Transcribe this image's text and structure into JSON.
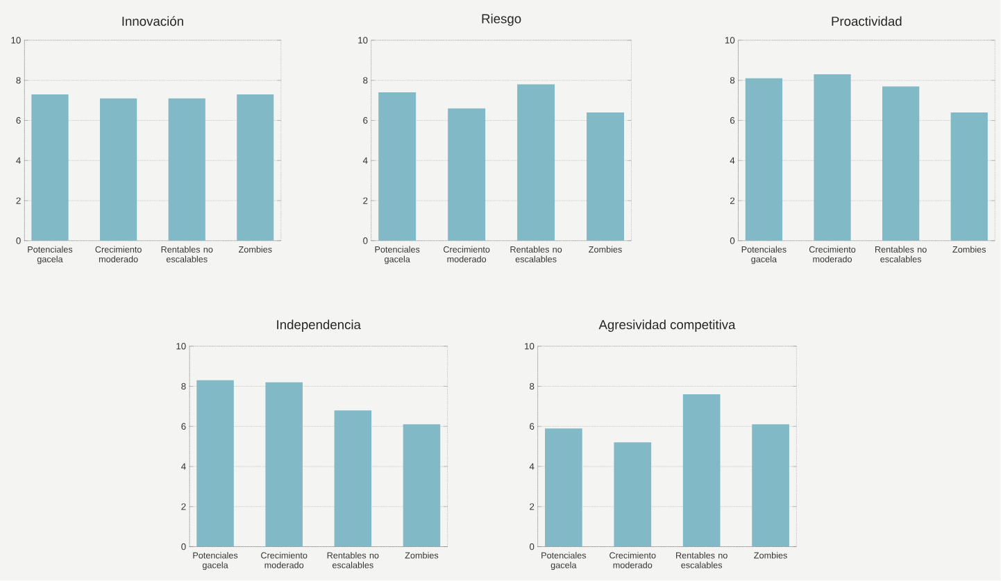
{
  "chart_data": [
    {
      "type": "bar",
      "title": "Innovación",
      "categories": [
        "Potenciales gacela",
        "Crecimiento moderado",
        "Rentables no escalables",
        "Zombies"
      ],
      "values": [
        7.3,
        7.1,
        7.1,
        7.3
      ],
      "color": "#82b9c7",
      "ylim": [
        0,
        10
      ],
      "yticks": [
        0,
        2,
        4,
        6,
        8,
        10
      ],
      "grid": "y"
    },
    {
      "type": "bar",
      "title": "Riesgo",
      "categories": [
        "Potenciales gacela",
        "Crecimiento moderado",
        "Rentables no escalables",
        "Zombies"
      ],
      "values": [
        7.4,
        6.6,
        7.8,
        6.4
      ],
      "color": "#82b9c7",
      "ylim": [
        0,
        10
      ],
      "yticks": [
        0,
        2,
        4,
        6,
        8,
        10
      ],
      "grid": "y"
    },
    {
      "type": "bar",
      "title": "Proactividad",
      "categories": [
        "Potenciales gacela",
        "Crecimiento moderado",
        "Rentables no escalables",
        "Zombies"
      ],
      "values": [
        8.1,
        8.3,
        7.7,
        6.4
      ],
      "color": "#82b9c7",
      "ylim": [
        0,
        10
      ],
      "yticks": [
        0,
        2,
        4,
        6,
        8,
        10
      ],
      "grid": "y"
    },
    {
      "type": "bar",
      "title": "Independencia",
      "categories": [
        "Potenciales gacela",
        "Crecimiento moderado",
        "Rentables no escalables",
        "Zombies"
      ],
      "values": [
        8.3,
        8.2,
        6.8,
        6.1
      ],
      "color": "#82b9c7",
      "ylim": [
        0,
        10
      ],
      "yticks": [
        0,
        2,
        4,
        6,
        8,
        10
      ],
      "grid": "y"
    },
    {
      "type": "bar",
      "title": "Agresividad competitiva",
      "categories": [
        "Potenciales gacela",
        "Crecimiento moderado",
        "Rentables no escalables",
        "Zombies"
      ],
      "values": [
        5.9,
        5.2,
        7.6,
        6.1
      ],
      "color": "#82b9c7",
      "ylim": [
        0,
        10
      ],
      "yticks": [
        0,
        2,
        4,
        6,
        8,
        10
      ],
      "grid": "y"
    }
  ]
}
